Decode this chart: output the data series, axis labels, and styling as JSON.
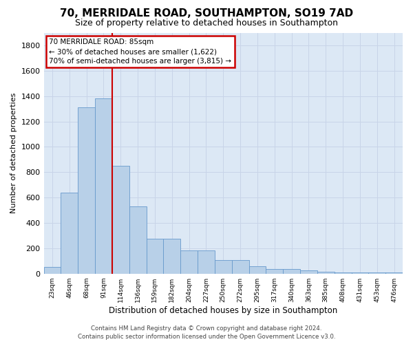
{
  "title": "70, MERRIDALE ROAD, SOUTHAMPTON, SO19 7AD",
  "subtitle": "Size of property relative to detached houses in Southampton",
  "xlabel": "Distribution of detached houses by size in Southampton",
  "ylabel": "Number of detached properties",
  "bar_color": "#b8d0e8",
  "bar_edge_color": "#6699cc",
  "categories": [
    "23sqm",
    "46sqm",
    "68sqm",
    "91sqm",
    "114sqm",
    "136sqm",
    "159sqm",
    "182sqm",
    "204sqm",
    "227sqm",
    "250sqm",
    "272sqm",
    "295sqm",
    "317sqm",
    "340sqm",
    "363sqm",
    "385sqm",
    "408sqm",
    "431sqm",
    "453sqm",
    "476sqm"
  ],
  "values": [
    50,
    640,
    1310,
    1380,
    850,
    530,
    275,
    275,
    185,
    185,
    105,
    105,
    60,
    35,
    35,
    25,
    15,
    10,
    10,
    10,
    10
  ],
  "ylim": [
    0,
    1900
  ],
  "yticks": [
    0,
    200,
    400,
    600,
    800,
    1000,
    1200,
    1400,
    1600,
    1800
  ],
  "vline_position": 3.5,
  "annotation_line1": "70 MERRIDALE ROAD: 85sqm",
  "annotation_line2": "← 30% of detached houses are smaller (1,622)",
  "annotation_line3": "70% of semi-detached houses are larger (3,815) →",
  "annotation_box_facecolor": "#ffffff",
  "annotation_box_edgecolor": "#cc0000",
  "vline_color": "#cc0000",
  "grid_color": "#c8d4e8",
  "plot_bg_color": "#dce8f5",
  "footer_line1": "Contains HM Land Registry data © Crown copyright and database right 2024.",
  "footer_line2": "Contains public sector information licensed under the Open Government Licence v3.0."
}
